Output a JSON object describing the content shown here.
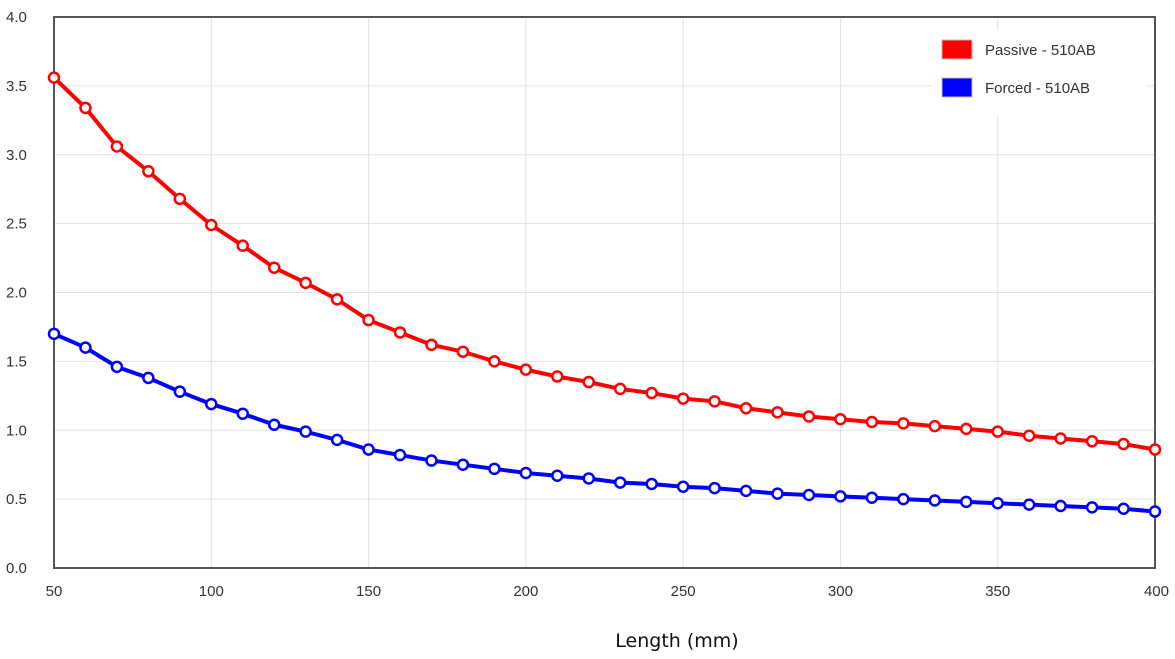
{
  "chart_data": {
    "type": "line",
    "xlabel": "Length (mm)",
    "ylabel": "",
    "xlim": [
      50,
      400
    ],
    "ylim": [
      0,
      4
    ],
    "x_ticks": [
      "50",
      "100",
      "150",
      "200",
      "250",
      "300",
      "350",
      "400"
    ],
    "y_ticks": [
      "0.0",
      "0.5",
      "1.0",
      "1.5",
      "2.0",
      "2.5",
      "3.0",
      "3.5",
      "4.0"
    ],
    "grid": true,
    "legend_position": "top-right",
    "x": [
      50,
      60,
      70,
      80,
      90,
      100,
      110,
      120,
      130,
      140,
      150,
      160,
      170,
      180,
      190,
      200,
      210,
      220,
      230,
      240,
      250,
      260,
      270,
      280,
      290,
      300,
      310,
      320,
      330,
      340,
      350,
      360,
      370,
      380,
      390,
      400
    ],
    "series": [
      {
        "name": "Passive - 510AB",
        "color": "#ff0000",
        "values": [
          3.56,
          3.34,
          3.06,
          2.88,
          2.68,
          2.49,
          2.34,
          2.18,
          2.07,
          1.95,
          1.8,
          1.71,
          1.62,
          1.57,
          1.5,
          1.44,
          1.39,
          1.35,
          1.3,
          1.27,
          1.23,
          1.21,
          1.16,
          1.13,
          1.1,
          1.08,
          1.06,
          1.05,
          1.03,
          1.01,
          0.99,
          0.96,
          0.94,
          0.92,
          0.9,
          0.86
        ]
      },
      {
        "name": "Forced - 510AB",
        "color": "#0000ff",
        "values": [
          1.7,
          1.6,
          1.46,
          1.38,
          1.28,
          1.19,
          1.12,
          1.04,
          0.99,
          0.93,
          0.86,
          0.82,
          0.78,
          0.75,
          0.72,
          0.69,
          0.67,
          0.65,
          0.62,
          0.61,
          0.59,
          0.58,
          0.56,
          0.54,
          0.53,
          0.52,
          0.51,
          0.5,
          0.49,
          0.48,
          0.47,
          0.46,
          0.45,
          0.44,
          0.43,
          0.41
        ]
      }
    ]
  }
}
